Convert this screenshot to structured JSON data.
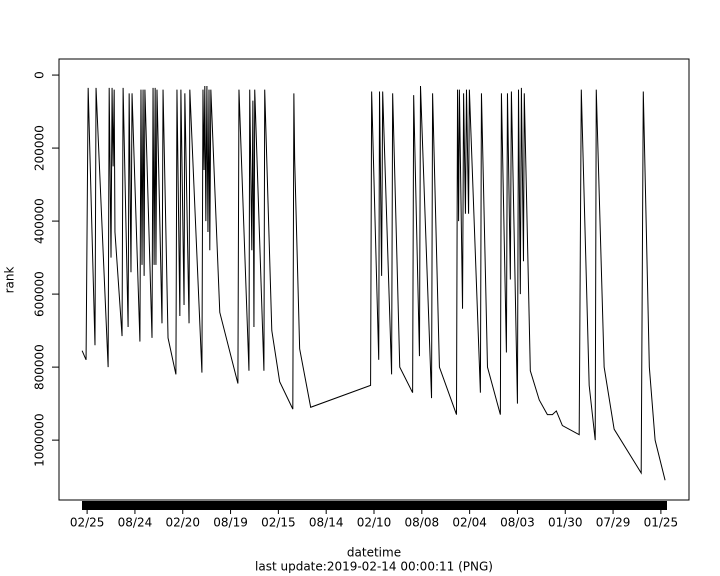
{
  "chart_data": {
    "type": "line",
    "x_label": "datetime",
    "y_label": "rank",
    "footer": "last update:2019-02-14 00:00:11 (PNG)",
    "color": "#000000",
    "xlim": [
      -107,
      2291
    ],
    "ylim": [
      1164000,
      -44000
    ],
    "xticks": [
      {
        "value": 0,
        "label": "02/25"
      },
      {
        "value": 182,
        "label": "08/24"
      },
      {
        "value": 364,
        "label": "02/20"
      },
      {
        "value": 546,
        "label": "08/19"
      },
      {
        "value": 728,
        "label": "02/15"
      },
      {
        "value": 910,
        "label": "08/14"
      },
      {
        "value": 1092,
        "label": "02/10"
      },
      {
        "value": 1274,
        "label": "08/08"
      },
      {
        "value": 1456,
        "label": "02/04"
      },
      {
        "value": 1638,
        "label": "08/03"
      },
      {
        "value": 1820,
        "label": "01/30"
      },
      {
        "value": 2002,
        "label": "07/29"
      },
      {
        "value": 2184,
        "label": "01/25"
      }
    ],
    "yticks": [
      0,
      200000,
      400000,
      600000,
      800000,
      1000000
    ],
    "x": [
      -19,
      -4,
      4,
      30,
      34,
      80,
      84,
      91,
      95,
      99,
      103,
      106,
      133,
      137,
      156,
      160,
      167,
      171,
      201,
      205,
      209,
      213,
      217,
      220,
      247,
      251,
      255,
      259,
      262,
      266,
      285,
      289,
      308,
      338,
      342,
      353,
      357,
      369,
      372,
      388,
      391,
      437,
      441,
      445,
      448,
      452,
      456,
      460,
      464,
      467,
      471,
      505,
      574,
      578,
      616,
      619,
      627,
      631,
      635,
      638,
      673,
      676,
      703,
      733,
      783,
      787,
      790,
      809,
      851,
      1079,
      1083,
      1110,
      1113,
      1121,
      1125,
      1159,
      1163,
      1190,
      1239,
      1243,
      1265,
      1269,
      1311,
      1315,
      1341,
      1406,
      1410,
      1414,
      1417,
      1429,
      1433,
      1440,
      1444,
      1452,
      1455,
      1497,
      1501,
      1524,
      1573,
      1577,
      1596,
      1600,
      1611,
      1615,
      1638,
      1642,
      1649,
      1653,
      1661,
      1664,
      1687,
      1721,
      1752,
      1771,
      1786,
      1809,
      1873,
      1881,
      1911,
      1934,
      1938,
      1968,
      2006,
      2109,
      2117,
      2140,
      2162,
      2200
    ],
    "values": [
      755000,
      780000,
      35000,
      740000,
      35000,
      800000,
      35000,
      500000,
      35000,
      250000,
      40000,
      430000,
      715000,
      35000,
      690000,
      50000,
      540000,
      50000,
      730000,
      40000,
      520000,
      40000,
      550000,
      40000,
      720000,
      35000,
      520000,
      35000,
      520000,
      40000,
      680000,
      40000,
      720000,
      820000,
      40000,
      660000,
      40000,
      630000,
      50000,
      680000,
      40000,
      815000,
      40000,
      260000,
      30000,
      400000,
      30000,
      430000,
      40000,
      480000,
      40000,
      650000,
      845000,
      40000,
      810000,
      40000,
      480000,
      70000,
      690000,
      40000,
      810000,
      40000,
      700000,
      840000,
      915000,
      50000,
      230000,
      750000,
      910000,
      850000,
      45000,
      780000,
      45000,
      550000,
      45000,
      820000,
      50000,
      800000,
      870000,
      55000,
      770000,
      30000,
      885000,
      50000,
      800000,
      930000,
      40000,
      400000,
      40000,
      640000,
      50000,
      380000,
      40000,
      380000,
      40000,
      870000,
      50000,
      800000,
      930000,
      50000,
      760000,
      50000,
      560000,
      45000,
      900000,
      40000,
      600000,
      35000,
      510000,
      50000,
      810000,
      890000,
      930000,
      930000,
      920000,
      960000,
      985000,
      40000,
      850000,
      1000000,
      40000,
      800000,
      970000,
      1090000,
      45000,
      800000,
      1000000,
      1110000
    ]
  }
}
